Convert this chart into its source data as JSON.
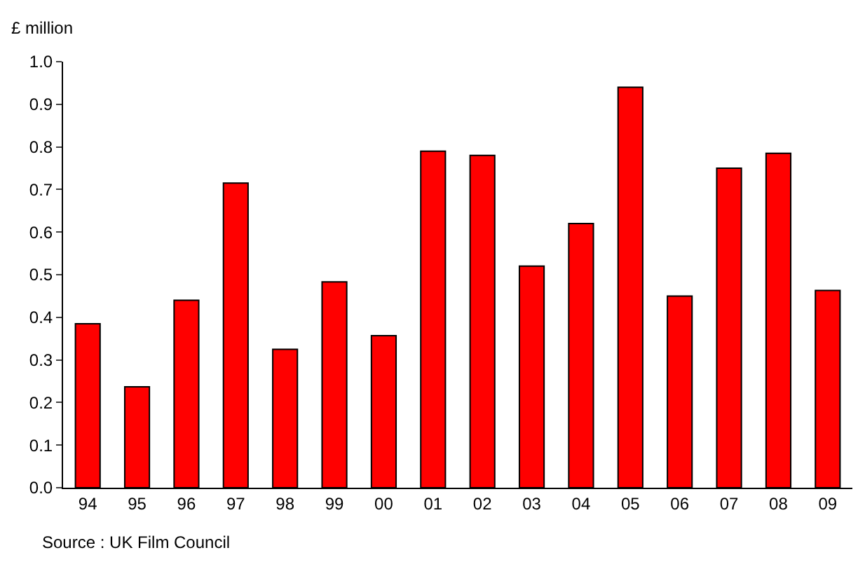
{
  "chart_data": {
    "type": "bar",
    "ylabel": "£ million",
    "categories": [
      "94",
      "95",
      "96",
      "97",
      "98",
      "99",
      "00",
      "01",
      "02",
      "03",
      "04",
      "05",
      "06",
      "07",
      "08",
      "09"
    ],
    "values": [
      0.385,
      0.237,
      0.44,
      0.715,
      0.325,
      0.483,
      0.357,
      0.79,
      0.78,
      0.52,
      0.62,
      0.94,
      0.45,
      0.75,
      0.785,
      0.463
    ],
    "color": "#ff0000",
    "ylim": [
      0,
      1
    ],
    "yticks": [
      {
        "value": 0,
        "label": "0.0"
      },
      {
        "value": 0.1,
        "label": "0.1"
      },
      {
        "value": 0.2,
        "label": "0.2"
      },
      {
        "value": 0.3,
        "label": "0.3"
      },
      {
        "value": 0.4,
        "label": "0.4"
      },
      {
        "value": 0.5,
        "label": "0.5"
      },
      {
        "value": 0.6,
        "label": "0.6"
      },
      {
        "value": 0.7,
        "label": "0.7"
      },
      {
        "value": 0.8,
        "label": "0.8"
      },
      {
        "value": 0.9,
        "label": "0.9"
      },
      {
        "value": 1,
        "label": "1.0"
      }
    ],
    "annotations": [
      "Source : UK Film Council"
    ]
  }
}
